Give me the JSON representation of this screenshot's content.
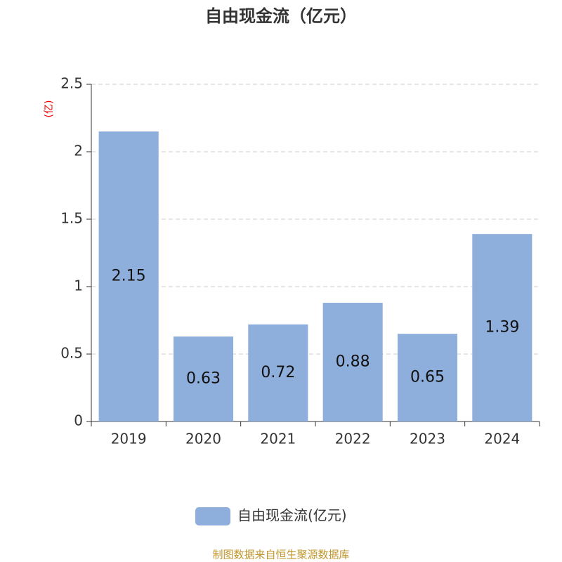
{
  "chart_data": {
    "type": "bar",
    "title": "自由现金流（亿元）",
    "y_label": "(亿)",
    "categories": [
      "2019",
      "2020",
      "2021",
      "2022",
      "2023",
      "2024"
    ],
    "series": [
      {
        "name": "自由现金流(亿元)",
        "color": "#8eaedb",
        "values": [
          2.15,
          0.63,
          0.72,
          0.88,
          0.65,
          1.39
        ]
      }
    ],
    "ylim": [
      0,
      2.5
    ],
    "yticks": [
      0,
      0.5,
      1,
      1.5,
      2,
      2.5
    ],
    "grid": true,
    "legend": "bottom",
    "source": "制图数据来自恒生聚源数据库"
  }
}
